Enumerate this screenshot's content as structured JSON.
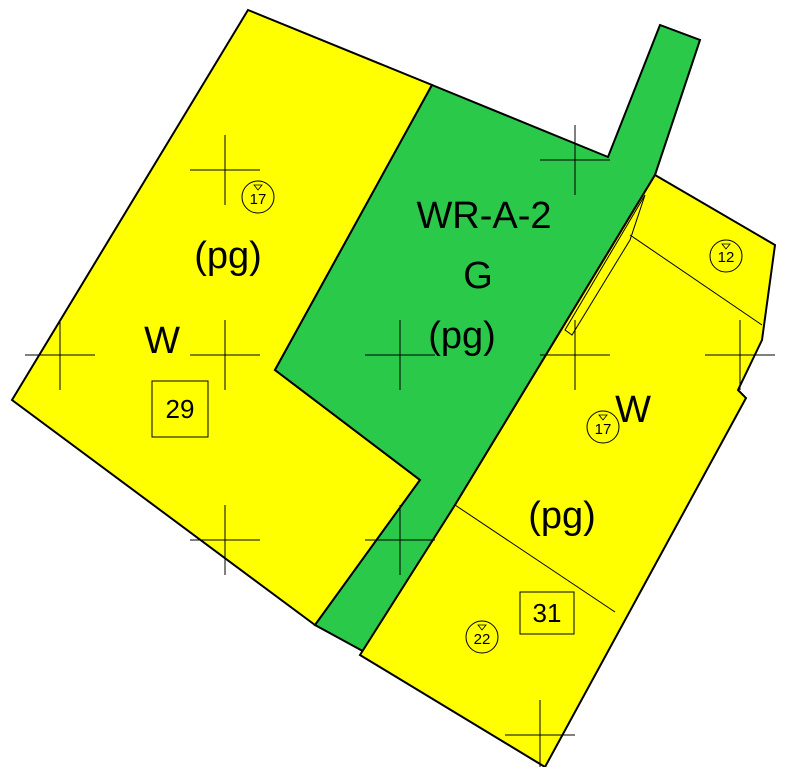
{
  "zones": [
    {
      "district": "W",
      "overlay": "(pg)",
      "block": "29",
      "parcels": [
        "17"
      ]
    },
    {
      "district": "WR-A-2",
      "subdistrict": "G",
      "overlay": "(pg)"
    },
    {
      "district": "W",
      "overlay": "(pg)",
      "block": "31",
      "parcels": [
        "12",
        "17",
        "22"
      ]
    }
  ]
}
